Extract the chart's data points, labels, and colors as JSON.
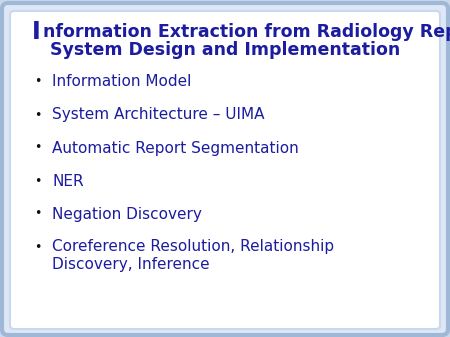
{
  "title_line1_I": "I",
  "title_line1_rest": "nformation Extraction from Radiology Reports:",
  "title_line2": "System Design and Implementation",
  "bullet_items": [
    "Information Model",
    "System Architecture – UIMA",
    "Automatic Report Segmentation",
    "NER",
    "Negation Discovery",
    "Coreference Resolution, Relationship\nDiscovery, Inference"
  ],
  "text_color": "#1c1c9e",
  "title_color": "#1c1c9e",
  "bg_color": "#ffffff",
  "border_color_outer": "#a0b8d8",
  "border_color_inner": "#c8d8ee",
  "slide_bg": "#ccd8e8",
  "title_fontsize": 12.5,
  "bullet_fontsize": 11.0,
  "I_fontsize": 17
}
